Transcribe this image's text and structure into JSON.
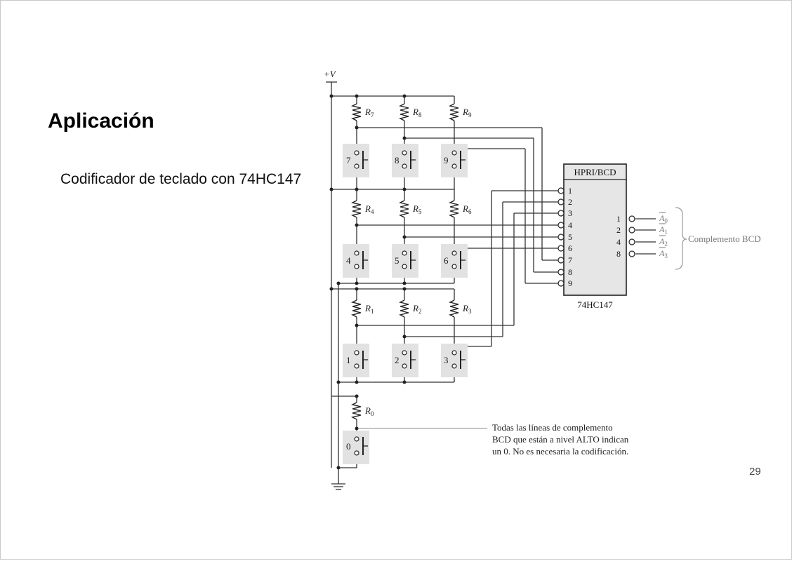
{
  "slide": {
    "title": "Aplicación",
    "subtitle": "Codificador de teclado con 74HC147",
    "page_number": "29"
  },
  "circuit": {
    "supply_label": "+V",
    "encoder": {
      "header": "HPRI/BCD",
      "part": "74HC147",
      "inputs": [
        "1",
        "2",
        "3",
        "4",
        "5",
        "6",
        "7",
        "8",
        "9"
      ],
      "outputs": [
        "1",
        "2",
        "4",
        "8"
      ],
      "output_names": [
        "A0",
        "A1",
        "A2",
        "A3"
      ],
      "output_subscripts": [
        "0",
        "1",
        "2",
        "3"
      ],
      "output_base": "A",
      "group_label": "Complemento BCD"
    },
    "resistors": {
      "r7": "7",
      "r8": "8",
      "r9": "9",
      "r4": "4",
      "r5": "5",
      "r6": "6",
      "r1": "1",
      "r2": "2",
      "r3": "3",
      "r0": "0",
      "base": "R"
    },
    "keys": [
      "7",
      "8",
      "9",
      "4",
      "5",
      "6",
      "1",
      "2",
      "3",
      "0"
    ],
    "note": [
      "Todas las líneas de complemento",
      "BCD que están a nivel ALTO indican",
      "un 0. No es necesaria la codificación."
    ]
  }
}
